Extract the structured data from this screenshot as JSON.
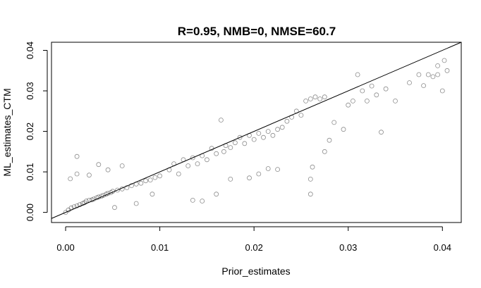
{
  "chart_data": {
    "type": "scatter",
    "title": "R=0.95, NMB=0, NMSE=60.7",
    "xlabel": "Prior_estimates",
    "ylabel": "ML_estimates_CTM",
    "xlim": [
      -0.0015,
      0.042
    ],
    "ylim": [
      -0.0025,
      0.042
    ],
    "x_ticks": [
      0.0,
      0.01,
      0.02,
      0.03,
      0.04
    ],
    "x_tick_labels": [
      "0.00",
      "0.01",
      "0.02",
      "0.03",
      "0.04"
    ],
    "y_ticks": [
      0.0,
      0.01,
      0.02,
      0.03,
      0.04
    ],
    "y_tick_labels": [
      "0.00",
      "0.01",
      "0.02",
      "0.03",
      "0.04"
    ],
    "marker": "open-circle",
    "marker_color": "#000000",
    "grid": false,
    "reference_line": {
      "slope": 1,
      "intercept": 0
    },
    "series": [
      {
        "points": [
          [
            0.0,
            0.0
          ],
          [
            0.0003,
            0.0006
          ],
          [
            0.0006,
            0.0011
          ],
          [
            0.0009,
            0.0014
          ],
          [
            0.0012,
            0.0016
          ],
          [
            0.0015,
            0.0019
          ],
          [
            0.0018,
            0.0022
          ],
          [
            0.002,
            0.0024
          ],
          [
            0.0022,
            0.0028
          ],
          [
            0.0025,
            0.003
          ],
          [
            0.0028,
            0.0031
          ],
          [
            0.003,
            0.0033
          ],
          [
            0.0033,
            0.0036
          ],
          [
            0.0035,
            0.0038
          ],
          [
            0.0038,
            0.004
          ],
          [
            0.004,
            0.0042
          ],
          [
            0.0043,
            0.0045
          ],
          [
            0.0045,
            0.0047
          ],
          [
            0.0048,
            0.0049
          ],
          [
            0.005,
            0.0052
          ],
          [
            0.0055,
            0.0055
          ],
          [
            0.006,
            0.0058
          ],
          [
            0.0065,
            0.0061
          ],
          [
            0.007,
            0.0066
          ],
          [
            0.0075,
            0.007
          ],
          [
            0.008,
            0.0072
          ],
          [
            0.0085,
            0.0078
          ],
          [
            0.009,
            0.008
          ],
          [
            0.0095,
            0.0086
          ],
          [
            0.01,
            0.009
          ],
          [
            0.0005,
            0.0083
          ],
          [
            0.0012,
            0.0095
          ],
          [
            0.0025,
            0.0092
          ],
          [
            0.0035,
            0.0118
          ],
          [
            0.0012,
            0.0138
          ],
          [
            0.0045,
            0.0105
          ],
          [
            0.006,
            0.0115
          ],
          [
            0.0052,
            0.0012
          ],
          [
            0.0075,
            0.0022
          ],
          [
            0.0092,
            0.0045
          ],
          [
            0.011,
            0.0105
          ],
          [
            0.0115,
            0.012
          ],
          [
            0.012,
            0.0095
          ],
          [
            0.0125,
            0.013
          ],
          [
            0.013,
            0.0115
          ],
          [
            0.0135,
            0.0135
          ],
          [
            0.014,
            0.012
          ],
          [
            0.0145,
            0.014
          ],
          [
            0.015,
            0.013
          ],
          [
            0.0155,
            0.0158
          ],
          [
            0.016,
            0.0145
          ],
          [
            0.0165,
            0.0228
          ],
          [
            0.0168,
            0.015
          ],
          [
            0.017,
            0.0165
          ],
          [
            0.0175,
            0.016
          ],
          [
            0.018,
            0.0172
          ],
          [
            0.0185,
            0.0185
          ],
          [
            0.019,
            0.017
          ],
          [
            0.0195,
            0.019
          ],
          [
            0.02,
            0.018
          ],
          [
            0.0205,
            0.0195
          ],
          [
            0.021,
            0.0185
          ],
          [
            0.0215,
            0.02
          ],
          [
            0.022,
            0.019
          ],
          [
            0.0225,
            0.0205
          ],
          [
            0.023,
            0.021
          ],
          [
            0.0235,
            0.0225
          ],
          [
            0.024,
            0.0235
          ],
          [
            0.0245,
            0.025
          ],
          [
            0.025,
            0.024
          ],
          [
            0.0255,
            0.0275
          ],
          [
            0.026,
            0.028
          ],
          [
            0.0265,
            0.0285
          ],
          [
            0.027,
            0.028
          ],
          [
            0.0275,
            0.0285
          ],
          [
            0.0135,
            0.003
          ],
          [
            0.0145,
            0.0028
          ],
          [
            0.016,
            0.0045
          ],
          [
            0.0175,
            0.0082
          ],
          [
            0.0195,
            0.0085
          ],
          [
            0.0205,
            0.0095
          ],
          [
            0.0215,
            0.0108
          ],
          [
            0.0225,
            0.0106
          ],
          [
            0.026,
            0.0082
          ],
          [
            0.026,
            0.0045
          ],
          [
            0.0262,
            0.0112
          ],
          [
            0.0275,
            0.015
          ],
          [
            0.028,
            0.0178
          ],
          [
            0.0285,
            0.0222
          ],
          [
            0.0295,
            0.0205
          ],
          [
            0.03,
            0.0265
          ],
          [
            0.0305,
            0.0275
          ],
          [
            0.031,
            0.034
          ],
          [
            0.0315,
            0.03
          ],
          [
            0.032,
            0.0275
          ],
          [
            0.0325,
            0.0312
          ],
          [
            0.033,
            0.029
          ],
          [
            0.0335,
            0.0198
          ],
          [
            0.034,
            0.0305
          ],
          [
            0.035,
            0.0275
          ],
          [
            0.0365,
            0.032
          ],
          [
            0.0375,
            0.034
          ],
          [
            0.0385,
            0.034
          ],
          [
            0.039,
            0.0335
          ],
          [
            0.0395,
            0.034
          ],
          [
            0.04,
            0.03
          ],
          [
            0.0402,
            0.0375
          ],
          [
            0.0405,
            0.035
          ],
          [
            0.038,
            0.0313
          ],
          [
            0.0395,
            0.0362
          ]
        ]
      }
    ]
  }
}
